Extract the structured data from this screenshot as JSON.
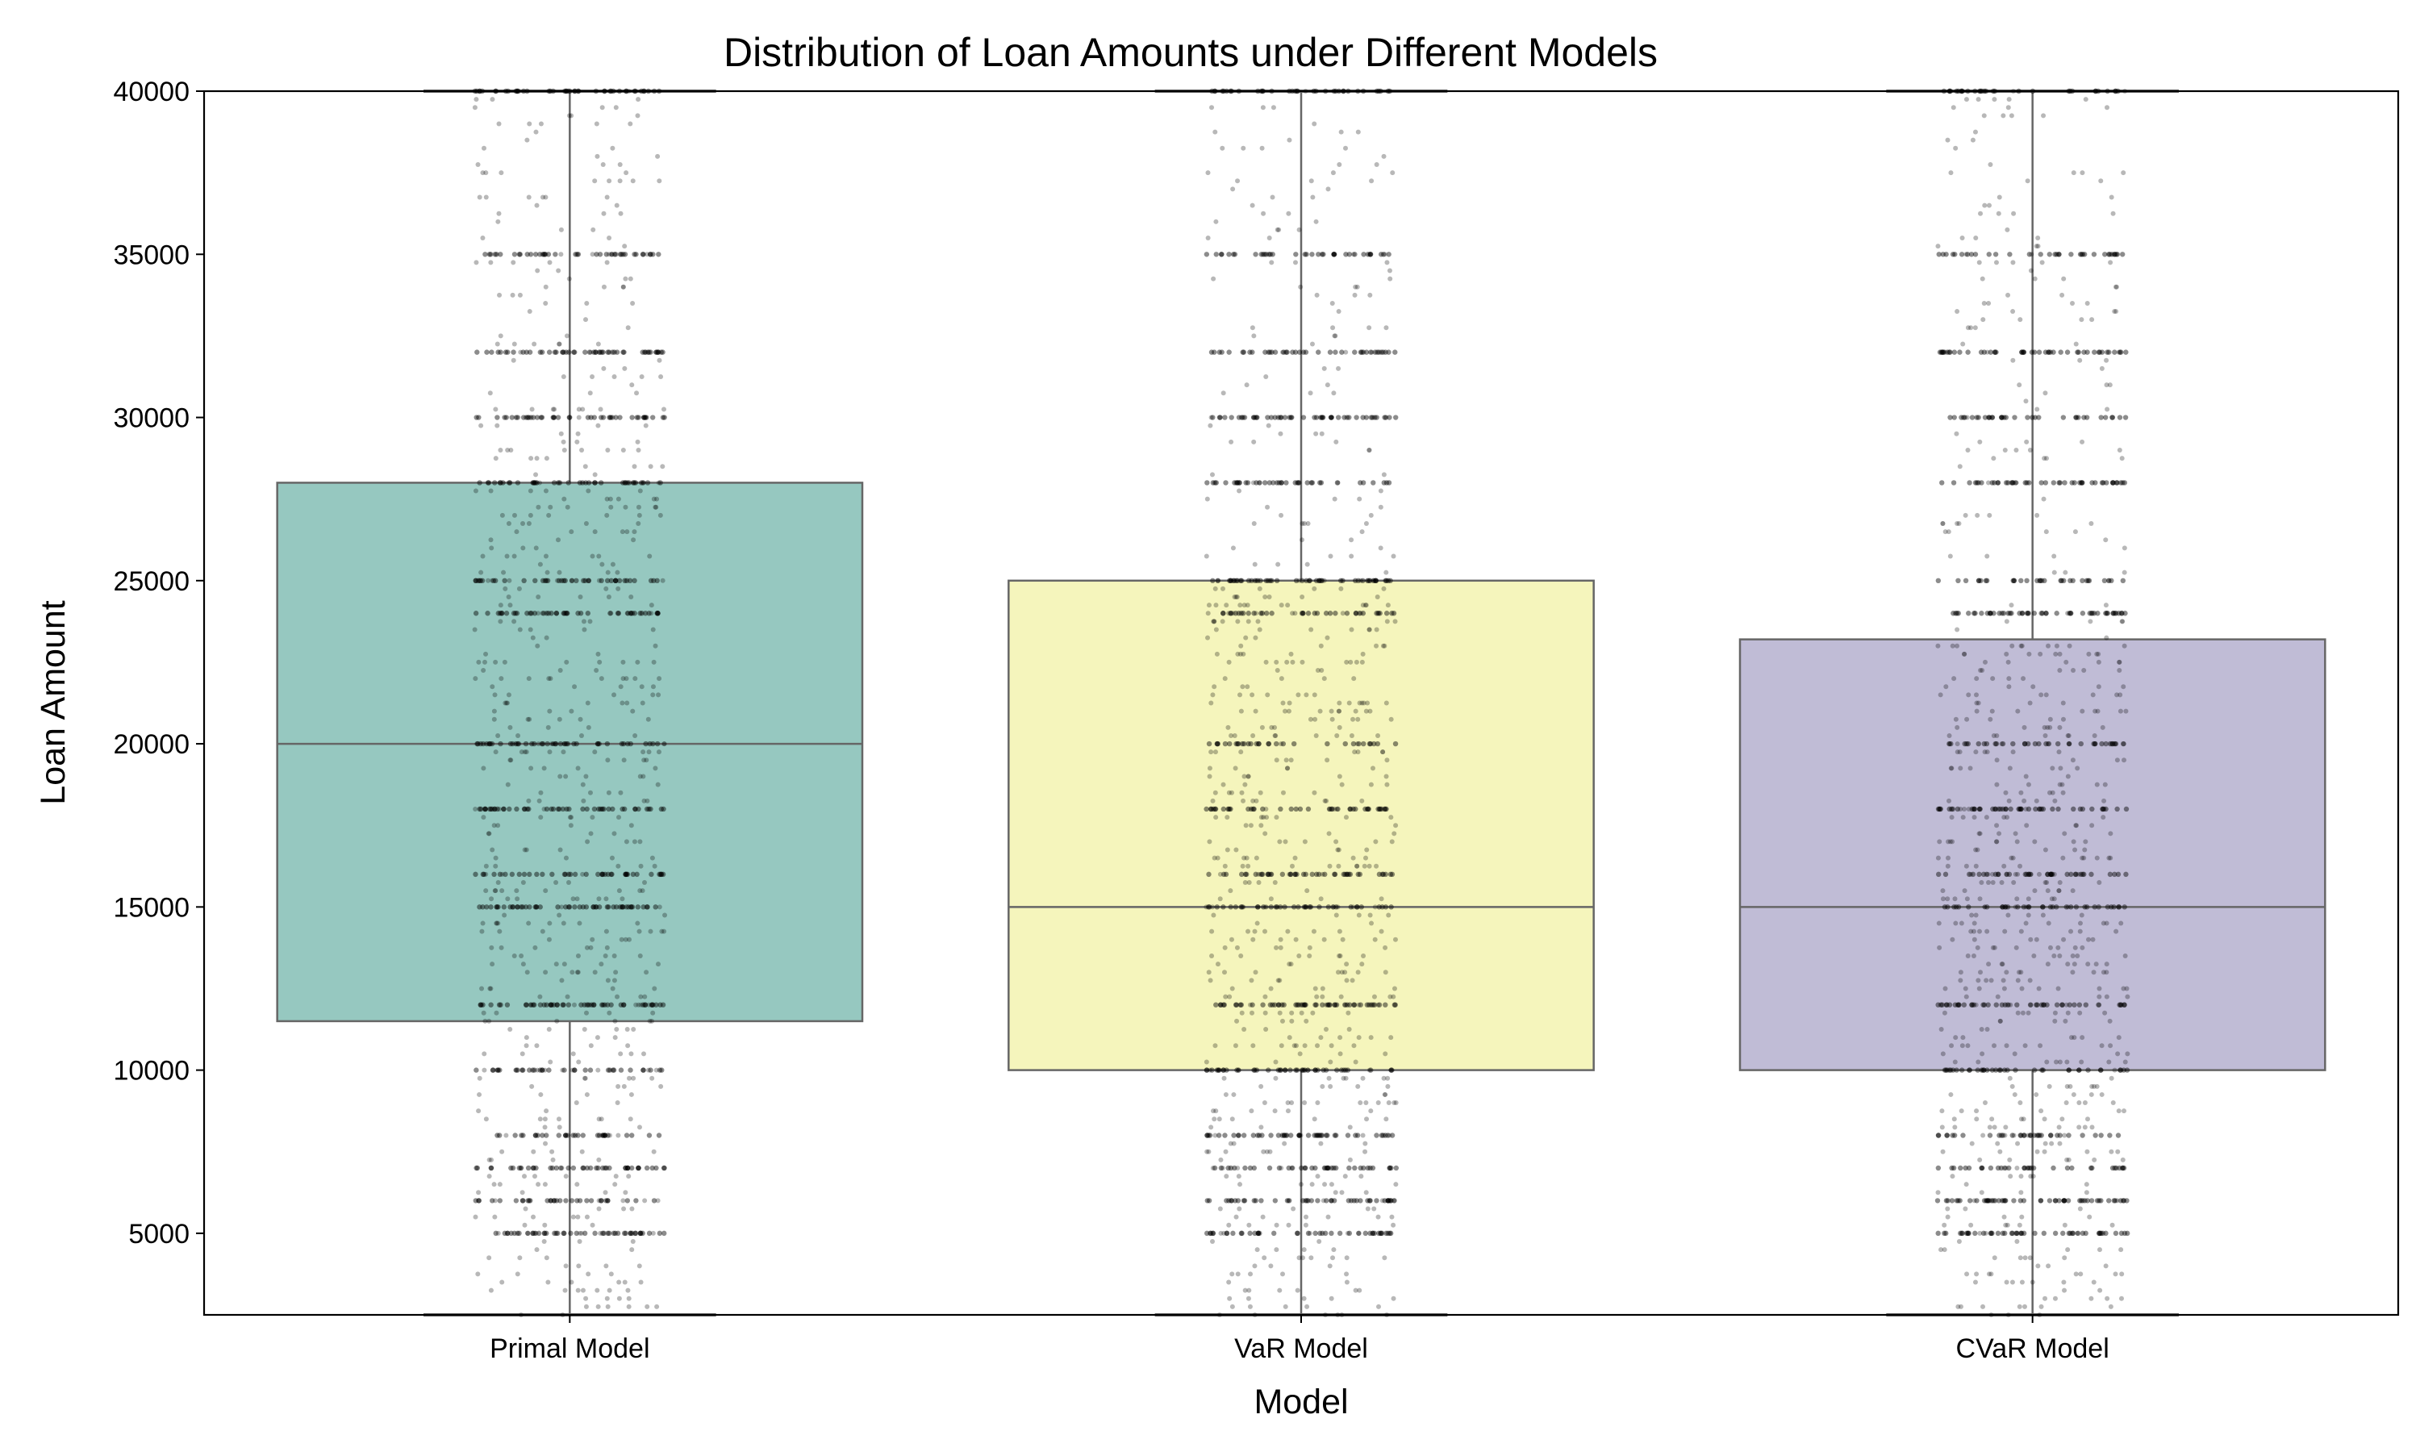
{
  "chart_data": {
    "type": "box",
    "title": "Distribution of Loan Amounts under Different Models",
    "xlabel": "Model",
    "ylabel": "Loan Amount",
    "ylim": [
      2500,
      40000
    ],
    "yticks": [
      5000,
      10000,
      15000,
      20000,
      25000,
      30000,
      35000,
      40000
    ],
    "yticklabels": [
      "5000",
      "10000",
      "15000",
      "20000",
      "25000",
      "30000",
      "35000",
      "40000"
    ],
    "grid": false,
    "legend": "none",
    "categories": [
      "Primal Model",
      "VaR Model",
      "CVaR Model"
    ],
    "boxes": [
      {
        "category": "Primal Model",
        "color": "#96c8c0",
        "whisker_low": 2500,
        "q1": 11500,
        "median": 20000,
        "q3": 28000,
        "whisker_high": 40000
      },
      {
        "category": "VaR Model",
        "color": "#f5f5bc",
        "whisker_low": 2500,
        "q1": 10000,
        "median": 15000,
        "q3": 25000,
        "whisker_high": 40000
      },
      {
        "category": "CVaR Model",
        "color": "#c0bcd6",
        "whisker_low": 2500,
        "q1": 10000,
        "median": 15000,
        "q3": 23200,
        "whisker_high": 40000
      }
    ],
    "points_overlay": {
      "style": "black jittered strip points, semi-transparent",
      "common_values": [
        5000,
        6000,
        7000,
        8000,
        10000,
        12000,
        15000,
        16000,
        18000,
        20000,
        24000,
        25000,
        28000,
        30000,
        32000,
        35000,
        40000
      ]
    }
  }
}
